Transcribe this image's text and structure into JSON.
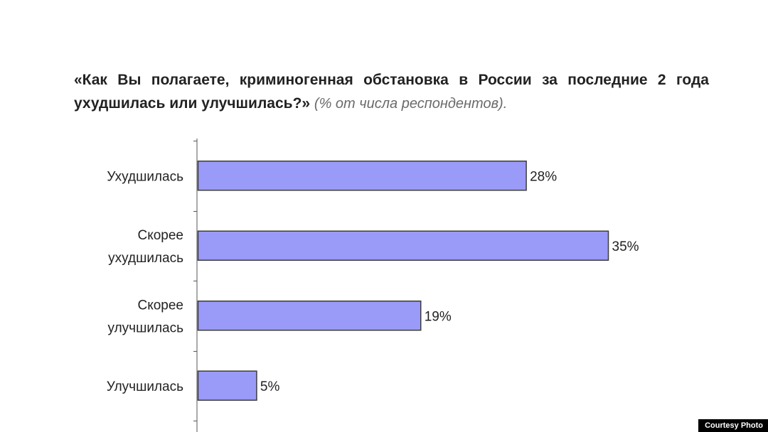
{
  "chart_data": {
    "type": "bar",
    "orientation": "horizontal",
    "title": "«Как Вы полагаете, криминогенная обстановка в России за последние 2 года ухудшилась или улучшилась?»",
    "subtitle": "(% от числа респондентов).",
    "categories": [
      "Ухудшилась",
      "Скорее ухудшилась",
      "Скорее улучшилась",
      "Улучшилась"
    ],
    "values": [
      28,
      35,
      19,
      5
    ],
    "value_labels": [
      "28%",
      "35%",
      "19%",
      "5%"
    ],
    "xlim": [
      0,
      35
    ],
    "grid": false,
    "legend": "none",
    "colors": {
      "bar_fill": "#9a9af9",
      "bar_stroke": "#3c3c3c",
      "axis": "#555555"
    }
  },
  "credit": "Courtesy Photo"
}
